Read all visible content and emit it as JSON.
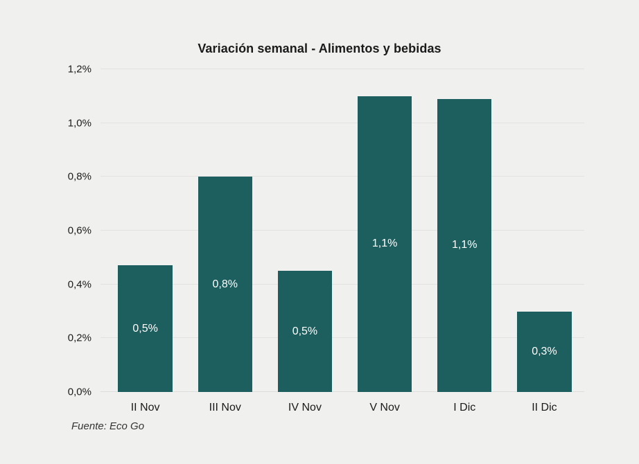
{
  "chart_data": {
    "type": "bar",
    "title": "Variación semanal - Alimentos y bebidas",
    "categories": [
      "II Nov",
      "III Nov",
      "IV Nov",
      "V Nov",
      "I Dic",
      "II Dic"
    ],
    "values": [
      0.47,
      0.8,
      0.45,
      1.1,
      1.09,
      0.3
    ],
    "bar_labels": [
      "0,5%",
      "0,8%",
      "0,5%",
      "1,1%",
      "1,1%",
      "0,3%"
    ],
    "xlabel": "",
    "ylabel": "",
    "ylim": [
      0,
      1.2
    ],
    "ytick_step": 0.2,
    "yticks": [
      {
        "value": 1.2,
        "label": "1,2%"
      },
      {
        "value": 1.0,
        "label": "1,0%"
      },
      {
        "value": 0.8,
        "label": "0,8%"
      },
      {
        "value": 0.6,
        "label": "0,6%"
      },
      {
        "value": 0.4,
        "label": "0,4%"
      },
      {
        "value": 0.2,
        "label": "0,2%"
      },
      {
        "value": 0.0,
        "label": "0,0%"
      }
    ],
    "grid": "horizontal",
    "legend_position": "none",
    "source": "Fuente: Eco Go",
    "colors": {
      "bar": "#1d5f5f",
      "background": "#f0f0ee",
      "gridline": "#e2e2e0",
      "axis_text": "#1a1a1a",
      "bar_label_text": "#ffffff",
      "title_text": "#1a1a1a"
    }
  }
}
